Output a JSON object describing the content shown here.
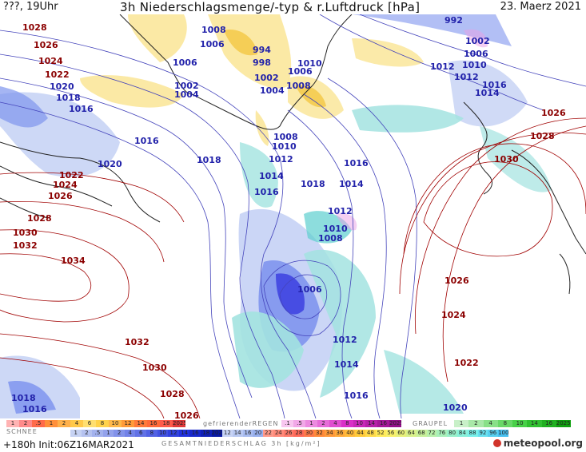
{
  "header": {
    "left": "???, 19Uhr",
    "title": "3h Niederschlagsmenge/-typ & r.Luftdruck [hPa]",
    "date": "23. Maerz 2021"
  },
  "colors": {
    "land": "#ffffff",
    "coast": "#222222",
    "isobar_low": "#4444bb",
    "isobar_high": "#a00000",
    "snow_light": "#c8d4f5",
    "snow_mid": "#7f95ee",
    "snow_heavy": "#3c3fe0",
    "rain_light": "#a3e3e0",
    "rain_mid": "#5ccfcf",
    "freezing": "#fbe8a0",
    "freezing_mid": "#f4c742",
    "graupel": "#e9a0e6"
  },
  "isobars": [
    {
      "text": "1028"
    },
    {
      "text": "1026"
    },
    {
      "text": "1024"
    },
    {
      "text": "1022"
    },
    {
      "text": "1020"
    },
    {
      "text": "1018"
    },
    {
      "text": "1016"
    },
    {
      "text": "1008"
    },
    {
      "text": "1006"
    },
    {
      "text": "1006"
    },
    {
      "text": "1002"
    },
    {
      "text": "1004"
    },
    {
      "text": "994"
    },
    {
      "text": "998"
    },
    {
      "text": "1002"
    },
    {
      "text": "1004"
    },
    {
      "text": "1006"
    },
    {
      "text": "1008"
    },
    {
      "text": "1010"
    },
    {
      "text": "992"
    },
    {
      "text": "1002"
    },
    {
      "text": "1006"
    },
    {
      "text": "1010"
    },
    {
      "text": "1012"
    },
    {
      "text": "1012"
    },
    {
      "text": "1016"
    },
    {
      "text": "1014"
    },
    {
      "text": "1026"
    },
    {
      "text": "1028"
    },
    {
      "text": "1030"
    },
    {
      "text": "1016"
    },
    {
      "text": "1020"
    },
    {
      "text": "1018"
    },
    {
      "text": "1008"
    },
    {
      "text": "1010"
    },
    {
      "text": "1012"
    },
    {
      "text": "1014"
    },
    {
      "text": "1016"
    },
    {
      "text": "1018"
    },
    {
      "text": "1016"
    },
    {
      "text": "1014"
    },
    {
      "text": "1012"
    },
    {
      "text": "1010"
    },
    {
      "text": "1008"
    },
    {
      "text": "1022"
    },
    {
      "text": "1024"
    },
    {
      "text": "1026"
    },
    {
      "text": "1028"
    },
    {
      "text": "1030"
    },
    {
      "text": "1032"
    },
    {
      "text": "1034"
    },
    {
      "text": "1006"
    },
    {
      "text": "1026"
    },
    {
      "text": "1024"
    },
    {
      "text": "1022"
    },
    {
      "text": "1012"
    },
    {
      "text": "1014"
    },
    {
      "text": "1016"
    },
    {
      "text": "1020"
    },
    {
      "text": "1032"
    },
    {
      "text": "1030"
    },
    {
      "text": "1028"
    },
    {
      "text": "1026"
    },
    {
      "text": "1018"
    },
    {
      "text": "1016"
    }
  ],
  "legend": {
    "snow_label": "SCHNEE",
    "snow_top": [
      "1",
      "2",
      ".5",
      "1",
      "2",
      "4",
      "6",
      "8",
      "10",
      "12",
      "14",
      "16",
      "18",
      "2025+"
    ],
    "snow_bottom": [
      "1",
      "2",
      ".5",
      "1",
      "2",
      "4",
      "6",
      "8",
      "10",
      "12",
      "14",
      "16",
      "18",
      "2025+"
    ],
    "freezing_label": "gefrierenderREGEN",
    "freezing": [
      ".1",
      ".5",
      "1",
      "2",
      "4",
      "8",
      "10",
      "14",
      "16",
      "2025+"
    ],
    "graupel_label": "GRAUPEL",
    "graupel": [
      "1",
      "2",
      "4",
      "8",
      "10",
      "14",
      "16",
      "2025+"
    ],
    "total_label": "GESAMTNIEDERSCHLAG  3h  [kg/m²]",
    "total": [
      "12",
      "14",
      "16",
      "20",
      "22",
      "24",
      "26",
      "28",
      "30",
      "32",
      "34",
      "36",
      "40",
      "44",
      "48",
      "52",
      "56",
      "60",
      "64",
      "68",
      "72",
      "76",
      "80",
      "84",
      "88",
      "92",
      "96",
      "100"
    ]
  },
  "footer": {
    "run": "+180h  Init:06Z16MAR2021",
    "logo": "meteopool.org"
  }
}
